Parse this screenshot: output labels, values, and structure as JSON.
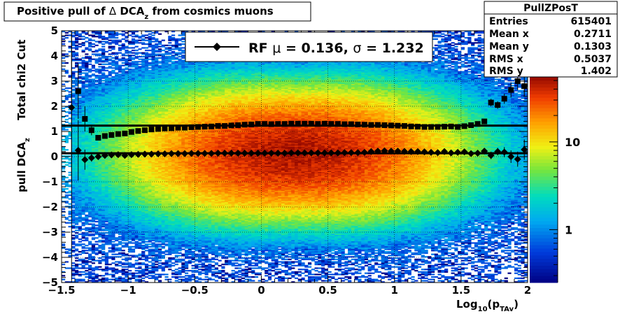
{
  "chart_data": {
    "type": "heatmap",
    "title": "Positive pull of Δ DCA_z from cosmics muons",
    "title_parts": {
      "prefix": "Positive pull of ",
      "delta": "Δ",
      "dca": " DCA",
      "sub": "z",
      "suffix": "  from cosmics muons"
    },
    "xlabel": {
      "main": "Log",
      "sub1": "10",
      "mid": "(p",
      "sub2": "TAv",
      "end": ")"
    },
    "ylabel_upper": "Total chi2 Cut",
    "ylabel_lower": {
      "main": "pull DCA",
      "sub": "z"
    },
    "xlim": [
      -1.5,
      2.0
    ],
    "ylim": [
      -5,
      5
    ],
    "x_ticks": [
      "−1.5",
      "−1",
      "−0.5",
      "0",
      "0.5",
      "1",
      "1.5",
      "2"
    ],
    "x_tick_values": [
      -1.5,
      -1,
      -0.5,
      0,
      0.5,
      1,
      1.5,
      2
    ],
    "y_ticks": [
      "−5",
      "−4",
      "−3",
      "−2",
      "−1",
      "0",
      "1",
      "2",
      "3",
      "4",
      "5"
    ],
    "y_tick_values": [
      -5,
      -4,
      -3,
      -2,
      -1,
      0,
      1,
      2,
      3,
      4,
      5
    ],
    "colorbar": {
      "scale": "log",
      "labels": [
        "1",
        "10"
      ],
      "label_values": [
        1,
        10
      ],
      "range": [
        0.25,
        55
      ]
    },
    "grid": true,
    "stats_box": {
      "title": "PullZPosT",
      "rows": [
        {
          "label": "Entries",
          "value": "615401"
        },
        {
          "label": "Mean x",
          "value": "0.2711"
        },
        {
          "label": "Mean y",
          "value": "0.1303"
        },
        {
          "label": "RMS x",
          "value": "0.5037"
        },
        {
          "label": "RMS y",
          "value": "1.402"
        }
      ]
    },
    "legend": {
      "label_prefix": "RF ",
      "mu_symbol": "μ",
      "mu_text": " =  0.136, ",
      "sigma_symbol": "σ",
      "sigma_text": " =   1.232"
    },
    "fit_lines": {
      "mean": 0.136,
      "sigma": 1.232
    },
    "series": [
      {
        "name": "sigma",
        "marker": "square",
        "points": [
          {
            "x": -1.375,
            "y": 2.6,
            "err": 1.1
          },
          {
            "x": -1.325,
            "y": 1.5,
            "err": 0.5
          },
          {
            "x": -1.275,
            "y": 1.05,
            "err": 0.2
          },
          {
            "x": -1.225,
            "y": 0.75,
            "err": 0.1
          },
          {
            "x": -1.175,
            "y": 0.82,
            "err": 0.08
          },
          {
            "x": -1.125,
            "y": 0.86,
            "err": 0.06
          },
          {
            "x": -1.075,
            "y": 0.9,
            "err": 0.05
          },
          {
            "x": -1.025,
            "y": 0.92,
            "err": 0.05
          },
          {
            "x": -0.975,
            "y": 0.98,
            "err": 0.04
          },
          {
            "x": -0.925,
            "y": 1.02,
            "err": 0.04
          },
          {
            "x": -0.875,
            "y": 1.05,
            "err": 0.03
          },
          {
            "x": -0.825,
            "y": 1.08,
            "err": 0.03
          },
          {
            "x": -0.775,
            "y": 1.1,
            "err": 0.03
          },
          {
            "x": -0.725,
            "y": 1.12,
            "err": 0.03
          },
          {
            "x": -0.675,
            "y": 1.13,
            "err": 0.02
          },
          {
            "x": -0.625,
            "y": 1.15,
            "err": 0.02
          },
          {
            "x": -0.575,
            "y": 1.15,
            "err": 0.02
          },
          {
            "x": -0.525,
            "y": 1.17,
            "err": 0.02
          },
          {
            "x": -0.475,
            "y": 1.18,
            "err": 0.02
          },
          {
            "x": -0.425,
            "y": 1.19,
            "err": 0.02
          },
          {
            "x": -0.375,
            "y": 1.2,
            "err": 0.02
          },
          {
            "x": -0.325,
            "y": 1.22,
            "err": 0.02
          },
          {
            "x": -0.275,
            "y": 1.22,
            "err": 0.02
          },
          {
            "x": -0.225,
            "y": 1.24,
            "err": 0.02
          },
          {
            "x": -0.175,
            "y": 1.25,
            "err": 0.02
          },
          {
            "x": -0.125,
            "y": 1.27,
            "err": 0.02
          },
          {
            "x": -0.075,
            "y": 1.28,
            "err": 0.02
          },
          {
            "x": -0.025,
            "y": 1.3,
            "err": 0.02
          },
          {
            "x": 0.025,
            "y": 1.3,
            "err": 0.02
          },
          {
            "x": 0.075,
            "y": 1.29,
            "err": 0.02
          },
          {
            "x": 0.125,
            "y": 1.3,
            "err": 0.02
          },
          {
            "x": 0.175,
            "y": 1.3,
            "err": 0.02
          },
          {
            "x": 0.225,
            "y": 1.31,
            "err": 0.02
          },
          {
            "x": 0.275,
            "y": 1.31,
            "err": 0.02
          },
          {
            "x": 0.325,
            "y": 1.31,
            "err": 0.02
          },
          {
            "x": 0.375,
            "y": 1.31,
            "err": 0.02
          },
          {
            "x": 0.425,
            "y": 1.3,
            "err": 0.02
          },
          {
            "x": 0.475,
            "y": 1.31,
            "err": 0.02
          },
          {
            "x": 0.525,
            "y": 1.3,
            "err": 0.02
          },
          {
            "x": 0.575,
            "y": 1.3,
            "err": 0.02
          },
          {
            "x": 0.625,
            "y": 1.29,
            "err": 0.02
          },
          {
            "x": 0.675,
            "y": 1.29,
            "err": 0.02
          },
          {
            "x": 0.725,
            "y": 1.28,
            "err": 0.02
          },
          {
            "x": 0.775,
            "y": 1.27,
            "err": 0.02
          },
          {
            "x": 0.825,
            "y": 1.26,
            "err": 0.02
          },
          {
            "x": 0.875,
            "y": 1.26,
            "err": 0.02
          },
          {
            "x": 0.925,
            "y": 1.25,
            "err": 0.02
          },
          {
            "x": 0.975,
            "y": 1.24,
            "err": 0.02
          },
          {
            "x": 1.025,
            "y": 1.23,
            "err": 0.03
          },
          {
            "x": 1.075,
            "y": 1.22,
            "err": 0.03
          },
          {
            "x": 1.125,
            "y": 1.2,
            "err": 0.03
          },
          {
            "x": 1.175,
            "y": 1.19,
            "err": 0.03
          },
          {
            "x": 1.225,
            "y": 1.18,
            "err": 0.03
          },
          {
            "x": 1.275,
            "y": 1.18,
            "err": 0.04
          },
          {
            "x": 1.325,
            "y": 1.18,
            "err": 0.04
          },
          {
            "x": 1.375,
            "y": 1.19,
            "err": 0.05
          },
          {
            "x": 1.425,
            "y": 1.2,
            "err": 0.05
          },
          {
            "x": 1.475,
            "y": 1.18,
            "err": 0.06
          },
          {
            "x": 1.525,
            "y": 1.21,
            "err": 0.06
          },
          {
            "x": 1.575,
            "y": 1.25,
            "err": 0.07
          },
          {
            "x": 1.625,
            "y": 1.3,
            "err": 0.08
          },
          {
            "x": 1.675,
            "y": 1.4,
            "err": 0.09
          },
          {
            "x": 1.725,
            "y": 2.15,
            "err": 0.15
          },
          {
            "x": 1.775,
            "y": 2.05,
            "err": 0.15
          },
          {
            "x": 1.825,
            "y": 2.3,
            "err": 0.2
          },
          {
            "x": 1.875,
            "y": 2.65,
            "err": 0.3
          },
          {
            "x": 1.925,
            "y": 3.0,
            "err": 0.35
          },
          {
            "x": 1.975,
            "y": 2.8,
            "err": 0.4
          }
        ]
      },
      {
        "name": "mean",
        "marker": "diamond",
        "points": [
          {
            "x": -1.425,
            "y": 1.95,
            "err": 3.0
          },
          {
            "x": -1.375,
            "y": 0.25,
            "err": 1.2
          },
          {
            "x": -1.325,
            "y": -0.12,
            "err": 0.4
          },
          {
            "x": -1.275,
            "y": -0.05,
            "err": 0.15
          },
          {
            "x": -1.225,
            "y": 0.0,
            "err": 0.08
          },
          {
            "x": -1.175,
            "y": 0.05,
            "err": 0.06
          },
          {
            "x": -1.125,
            "y": 0.07,
            "err": 0.05
          },
          {
            "x": -1.075,
            "y": 0.08,
            "err": 0.04
          },
          {
            "x": -1.025,
            "y": 0.05,
            "err": 0.04
          },
          {
            "x": -0.975,
            "y": 0.08,
            "err": 0.03
          },
          {
            "x": -0.925,
            "y": 0.09,
            "err": 0.03
          },
          {
            "x": -0.875,
            "y": 0.1,
            "err": 0.03
          },
          {
            "x": -0.825,
            "y": 0.1,
            "err": 0.03
          },
          {
            "x": -0.775,
            "y": 0.11,
            "err": 0.02
          },
          {
            "x": -0.725,
            "y": 0.11,
            "err": 0.02
          },
          {
            "x": -0.675,
            "y": 0.12,
            "err": 0.02
          },
          {
            "x": -0.625,
            "y": 0.12,
            "err": 0.02
          },
          {
            "x": -0.575,
            "y": 0.12,
            "err": 0.02
          },
          {
            "x": -0.525,
            "y": 0.13,
            "err": 0.02
          },
          {
            "x": -0.475,
            "y": 0.13,
            "err": 0.02
          },
          {
            "x": -0.425,
            "y": 0.13,
            "err": 0.02
          },
          {
            "x": -0.375,
            "y": 0.13,
            "err": 0.02
          },
          {
            "x": -0.325,
            "y": 0.14,
            "err": 0.02
          },
          {
            "x": -0.275,
            "y": 0.14,
            "err": 0.02
          },
          {
            "x": -0.225,
            "y": 0.14,
            "err": 0.02
          },
          {
            "x": -0.175,
            "y": 0.14,
            "err": 0.02
          },
          {
            "x": -0.125,
            "y": 0.14,
            "err": 0.02
          },
          {
            "x": -0.075,
            "y": 0.14,
            "err": 0.02
          },
          {
            "x": -0.025,
            "y": 0.14,
            "err": 0.02
          },
          {
            "x": 0.025,
            "y": 0.14,
            "err": 0.02
          },
          {
            "x": 0.075,
            "y": 0.14,
            "err": 0.02
          },
          {
            "x": 0.125,
            "y": 0.14,
            "err": 0.02
          },
          {
            "x": 0.175,
            "y": 0.14,
            "err": 0.02
          },
          {
            "x": 0.225,
            "y": 0.15,
            "err": 0.02
          },
          {
            "x": 0.275,
            "y": 0.15,
            "err": 0.02
          },
          {
            "x": 0.325,
            "y": 0.15,
            "err": 0.02
          },
          {
            "x": 0.375,
            "y": 0.15,
            "err": 0.02
          },
          {
            "x": 0.425,
            "y": 0.15,
            "err": 0.02
          },
          {
            "x": 0.475,
            "y": 0.15,
            "err": 0.02
          },
          {
            "x": 0.525,
            "y": 0.15,
            "err": 0.02
          },
          {
            "x": 0.575,
            "y": 0.15,
            "err": 0.02
          },
          {
            "x": 0.625,
            "y": 0.16,
            "err": 0.02
          },
          {
            "x": 0.675,
            "y": 0.16,
            "err": 0.02
          },
          {
            "x": 0.725,
            "y": 0.16,
            "err": 0.02
          },
          {
            "x": 0.775,
            "y": 0.17,
            "err": 0.02
          },
          {
            "x": 0.825,
            "y": 0.2,
            "err": 0.02
          },
          {
            "x": 0.875,
            "y": 0.22,
            "err": 0.02
          },
          {
            "x": 0.925,
            "y": 0.23,
            "err": 0.02
          },
          {
            "x": 0.975,
            "y": 0.22,
            "err": 0.02
          },
          {
            "x": 1.025,
            "y": 0.22,
            "err": 0.03
          },
          {
            "x": 1.075,
            "y": 0.21,
            "err": 0.03
          },
          {
            "x": 1.125,
            "y": 0.2,
            "err": 0.03
          },
          {
            "x": 1.175,
            "y": 0.2,
            "err": 0.03
          },
          {
            "x": 1.225,
            "y": 0.19,
            "err": 0.04
          },
          {
            "x": 1.275,
            "y": 0.17,
            "err": 0.04
          },
          {
            "x": 1.325,
            "y": 0.16,
            "err": 0.04
          },
          {
            "x": 1.375,
            "y": 0.2,
            "err": 0.05
          },
          {
            "x": 1.425,
            "y": 0.15,
            "err": 0.05
          },
          {
            "x": 1.475,
            "y": 0.17,
            "err": 0.06
          },
          {
            "x": 1.525,
            "y": 0.19,
            "err": 0.06
          },
          {
            "x": 1.575,
            "y": 0.12,
            "err": 0.07
          },
          {
            "x": 1.625,
            "y": 0.14,
            "err": 0.08
          },
          {
            "x": 1.675,
            "y": 0.22,
            "err": 0.1
          },
          {
            "x": 1.725,
            "y": 0.05,
            "err": 0.15
          },
          {
            "x": 1.775,
            "y": 0.2,
            "err": 0.15
          },
          {
            "x": 1.825,
            "y": 0.18,
            "err": 0.2
          },
          {
            "x": 1.875,
            "y": 0.0,
            "err": 0.25
          },
          {
            "x": 1.925,
            "y": -0.1,
            "err": 0.3
          },
          {
            "x": 1.975,
            "y": 0.28,
            "err": 0.4
          }
        ]
      }
    ]
  }
}
